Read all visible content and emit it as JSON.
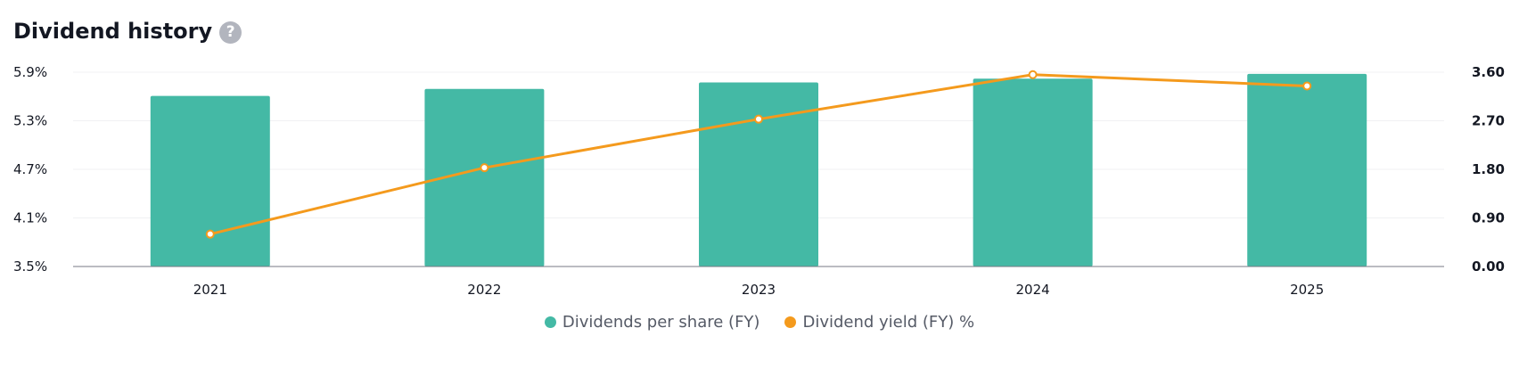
{
  "header": {
    "title": "Dividend history",
    "help_icon": "question-mark-icon"
  },
  "colors": {
    "bar": "#44b9a5",
    "line": "#f49a1d",
    "grid": "#f0f1f3",
    "axis": "#777a85"
  },
  "chart_data": {
    "type": "bar",
    "categories": [
      "2021",
      "2022",
      "2023",
      "2024",
      "2025"
    ],
    "series": [
      {
        "name": "Dividends per share (FY)",
        "type": "bar",
        "axis": "right",
        "values": [
          3.16,
          3.29,
          3.41,
          3.48,
          3.57
        ]
      },
      {
        "name": "Dividend yield (FY) %",
        "type": "line",
        "axis": "left",
        "values": [
          3.9,
          4.72,
          5.32,
          5.87,
          5.73
        ]
      }
    ],
    "left_axis": {
      "ticks": [
        "5.9%",
        "5.3%",
        "4.7%",
        "4.1%",
        "3.5%"
      ],
      "tick_values": [
        5.9,
        5.3,
        4.7,
        4.1,
        3.5
      ],
      "ylim": [
        3.5,
        5.9
      ]
    },
    "right_axis": {
      "ticks": [
        "3.60",
        "2.70",
        "1.80",
        "0.90",
        "0.00"
      ],
      "tick_values": [
        3.6,
        2.7,
        1.8,
        0.9,
        0.0
      ],
      "ylim": [
        0,
        3.6
      ]
    },
    "grid": true,
    "legend": "bottom-center"
  }
}
